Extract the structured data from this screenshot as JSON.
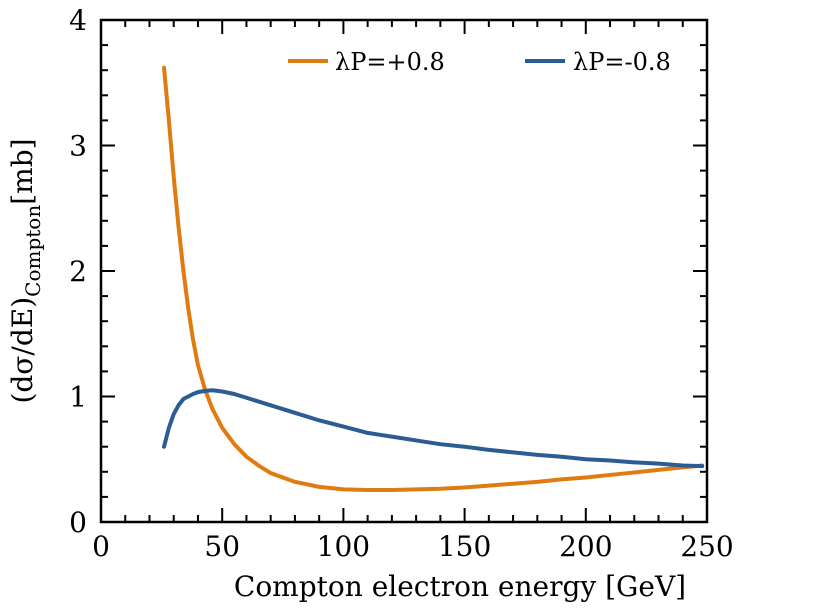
{
  "chart_data": {
    "type": "line",
    "xlabel": "Compton electron energy [GeV]",
    "ylabel": {
      "prefix": "(dσ/dE)",
      "subscript": "Compton",
      "suffix": "[mb]"
    },
    "xlim": [
      0,
      250
    ],
    "ylim": [
      0,
      4
    ],
    "xticks": [
      0,
      50,
      100,
      150,
      200,
      250
    ],
    "yticks": [
      0,
      1,
      2,
      3,
      4
    ],
    "grid": false,
    "legend_position": "top-right",
    "series": [
      {
        "name": "λP=+0.8",
        "color": "#e07b12",
        "x": [
          26,
          28,
          30,
          32,
          34,
          36,
          38,
          40,
          43,
          46,
          50,
          55,
          60,
          65,
          70,
          80,
          90,
          100,
          110,
          120,
          130,
          140,
          150,
          160,
          170,
          180,
          190,
          200,
          210,
          220,
          230,
          240,
          248
        ],
        "y": [
          3.62,
          3.2,
          2.75,
          2.35,
          2.0,
          1.7,
          1.45,
          1.25,
          1.05,
          0.9,
          0.75,
          0.62,
          0.52,
          0.45,
          0.39,
          0.32,
          0.28,
          0.26,
          0.255,
          0.255,
          0.26,
          0.265,
          0.275,
          0.29,
          0.305,
          0.32,
          0.34,
          0.355,
          0.375,
          0.395,
          0.415,
          0.435,
          0.45
        ]
      },
      {
        "name": "λP=-0.8",
        "color": "#2b5c94",
        "x": [
          26,
          28,
          30,
          32,
          34,
          36,
          38,
          40,
          43,
          46,
          50,
          55,
          60,
          70,
          80,
          90,
          100,
          110,
          120,
          130,
          140,
          150,
          160,
          170,
          180,
          190,
          200,
          210,
          220,
          230,
          240,
          248
        ],
        "y": [
          0.6,
          0.75,
          0.86,
          0.93,
          0.98,
          1.0,
          1.02,
          1.035,
          1.045,
          1.05,
          1.04,
          1.02,
          0.99,
          0.93,
          0.87,
          0.81,
          0.76,
          0.71,
          0.68,
          0.65,
          0.62,
          0.6,
          0.575,
          0.555,
          0.535,
          0.52,
          0.5,
          0.49,
          0.475,
          0.465,
          0.45,
          0.445
        ]
      }
    ]
  }
}
